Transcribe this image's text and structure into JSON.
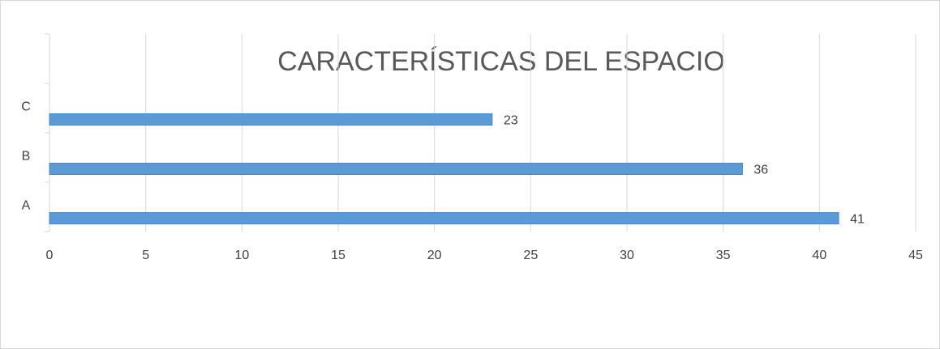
{
  "chart_data": {
    "type": "hbar",
    "title": "CARACTERÍSTICAS DEL ESPACIO",
    "categories": [
      "A",
      "B",
      "C"
    ],
    "values": [
      41,
      36,
      23
    ],
    "color": "#5b9bd5",
    "xlim": [
      0,
      45
    ],
    "xticks": [
      0,
      5,
      10,
      15,
      20,
      25,
      30,
      35,
      40,
      45
    ],
    "grid": true
  }
}
